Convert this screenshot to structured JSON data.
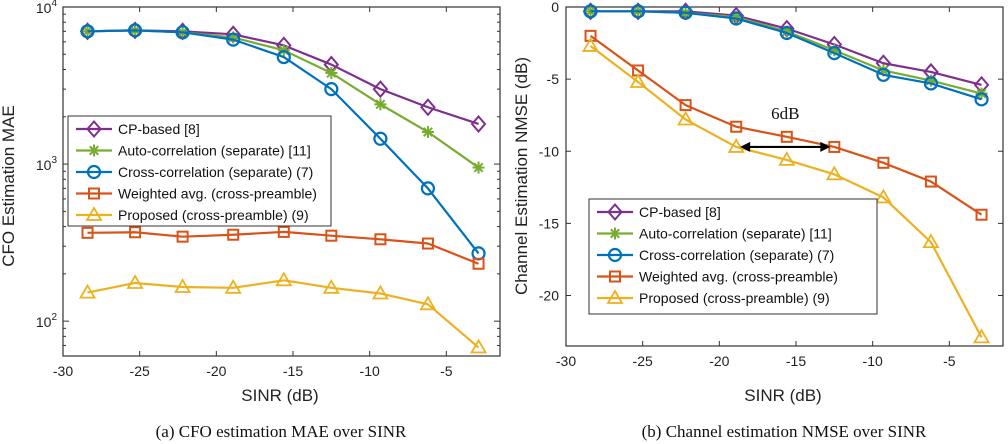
{
  "chart_data": [
    {
      "id": "cfo",
      "type": "line",
      "yscale": "log",
      "x": [
        -28.4,
        -25.3,
        -22.2,
        -18.9,
        -15.6,
        -12.5,
        -9.3,
        -6.2,
        -2.9
      ],
      "series": [
        {
          "name": "CP-based [8]",
          "color": "#7e2f8e",
          "marker": "diamond",
          "values": [
            7000,
            7100,
            7000,
            6700,
            5700,
            4300,
            3000,
            2300,
            1800
          ]
        },
        {
          "name": "Auto-correlation (separate) [11]",
          "color": "#77ac30",
          "marker": "star",
          "values": [
            7000,
            7100,
            6900,
            6400,
            5300,
            3800,
            2400,
            1600,
            950
          ]
        },
        {
          "name": "Cross-correlation (separate) (7)",
          "color": "#0072bd",
          "marker": "circle",
          "values": [
            7000,
            7100,
            6900,
            6200,
            4800,
            3000,
            1450,
            700,
            270
          ]
        },
        {
          "name": "Weighted avg. (cross-preamble)",
          "color": "#d95319",
          "marker": "square",
          "values": [
            365,
            368,
            345,
            355,
            370,
            350,
            332,
            312,
            232
          ]
        },
        {
          "name": "Proposed (cross-preamble) (9)",
          "color": "#edb120",
          "marker": "triangle",
          "values": [
            152,
            175,
            165,
            163,
            182,
            163,
            150,
            128,
            68
          ]
        }
      ],
      "xlabel": "SINR (dB)",
      "ylabel": "CFO Estimation MAE",
      "xlim": [
        -30,
        -1.5
      ],
      "ylim": [
        60,
        10000
      ],
      "xticks": [
        -30,
        -25,
        -20,
        -15,
        -10,
        -5
      ],
      "xtick_labels": [
        "-30",
        "-25",
        "-20",
        "-15",
        "-10",
        "-5"
      ],
      "ytick_base": "10",
      "ytick_exps": [
        "4",
        "3",
        "2"
      ],
      "legend_position": "middle-right",
      "caption": "(a) CFO estimation MAE over SINR"
    },
    {
      "id": "nmse",
      "type": "line",
      "yscale": "linear",
      "x": [
        -28.4,
        -25.3,
        -22.2,
        -18.9,
        -15.6,
        -12.5,
        -9.3,
        -6.2,
        -2.9
      ],
      "series": [
        {
          "name": "CP-based [8]",
          "color": "#7e2f8e",
          "marker": "diamond",
          "values": [
            -0.3,
            -0.3,
            -0.3,
            -0.6,
            -1.5,
            -2.6,
            -3.9,
            -4.5,
            -5.4
          ]
        },
        {
          "name": "Auto-correlation (separate) [11]",
          "color": "#77ac30",
          "marker": "star",
          "values": [
            -0.3,
            -0.3,
            -0.4,
            -0.7,
            -1.7,
            -3.0,
            -4.4,
            -5.1,
            -6.0
          ]
        },
        {
          "name": "Cross-correlation (separate) (7)",
          "color": "#0072bd",
          "marker": "circle",
          "values": [
            -0.3,
            -0.3,
            -0.4,
            -0.8,
            -1.8,
            -3.2,
            -4.7,
            -5.3,
            -6.4
          ]
        },
        {
          "name": "Weighted avg. (cross-preamble)",
          "color": "#d95319",
          "marker": "square",
          "values": [
            -2.0,
            -4.4,
            -6.8,
            -8.3,
            -9.0,
            -9.7,
            -10.8,
            -12.1,
            -14.4
          ]
        },
        {
          "name": "Proposed (cross-preamble) (9)",
          "color": "#edb120",
          "marker": "triangle",
          "values": [
            -2.7,
            -5.2,
            -7.8,
            -9.7,
            -10.6,
            -11.6,
            -13.2,
            -16.3,
            -22.9
          ]
        }
      ],
      "xlabel": "SINR (dB)",
      "ylabel": "Channel Estimation NMSE (dB)",
      "xlim": [
        -30,
        -1.5
      ],
      "ylim": [
        -23.5,
        0
      ],
      "xticks": [
        -30,
        -25,
        -20,
        -15,
        -10,
        -5
      ],
      "xtick_labels": [
        "-30",
        "-25",
        "-20",
        "-15",
        "-10",
        "-5"
      ],
      "yticks": [
        0,
        -5,
        -10,
        -15,
        -20
      ],
      "ytick_labels": [
        "0",
        "-5",
        "-10",
        "-15",
        "-20"
      ],
      "legend_position": "lower-left",
      "annotation": {
        "text": "6dB",
        "x_from": -18.9,
        "x_to": -12.5,
        "y": -9.7
      },
      "caption": "(b) Channel estimation NMSE over SINR"
    }
  ]
}
